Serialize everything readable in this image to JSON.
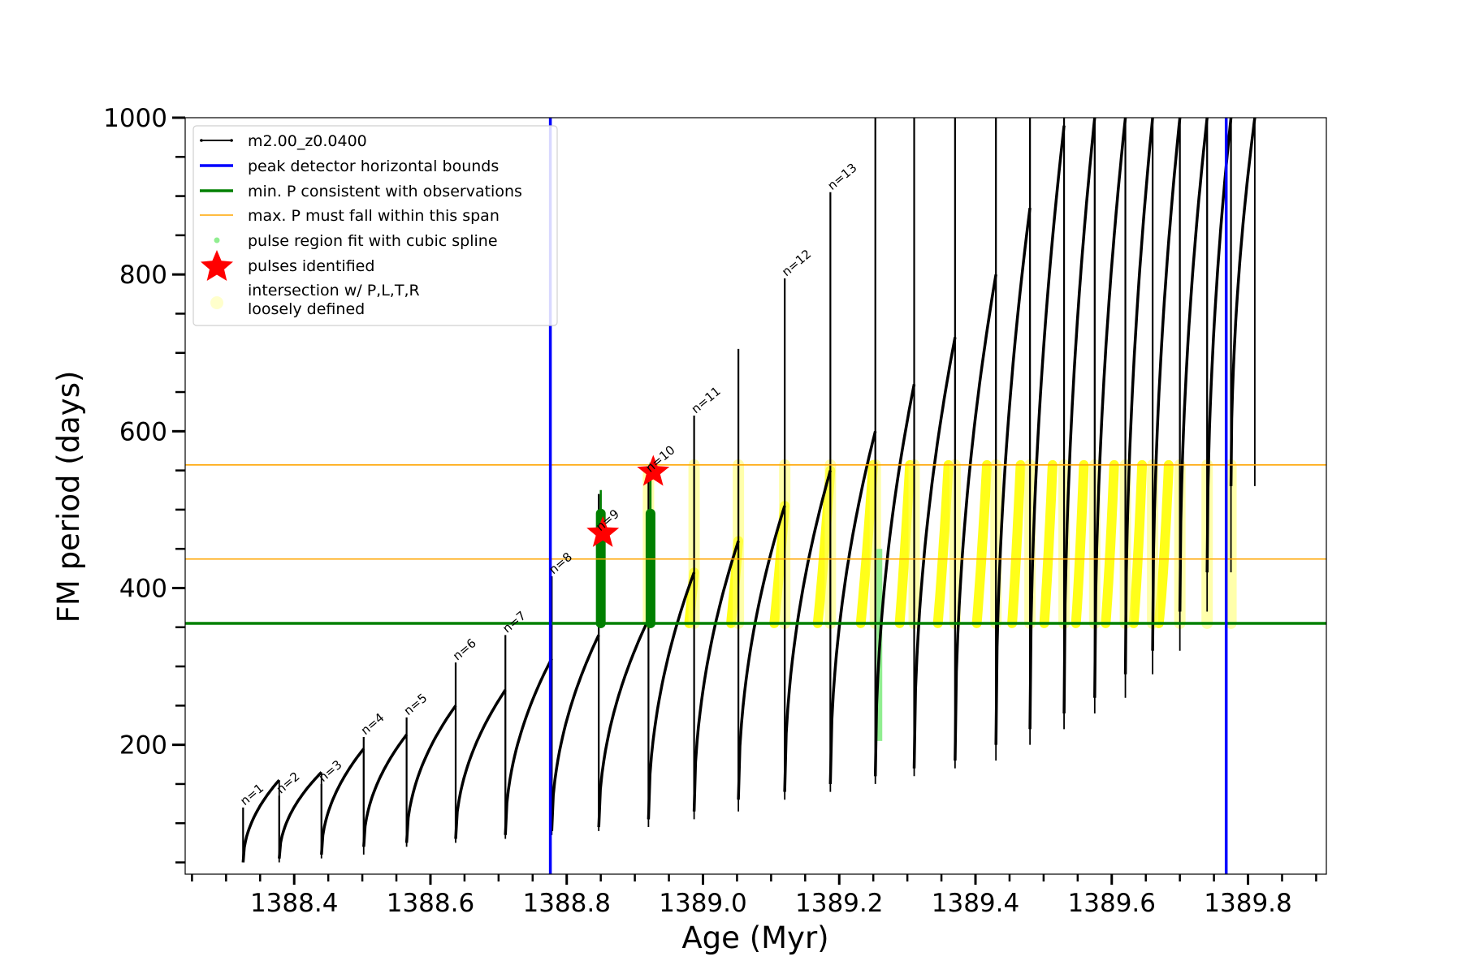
{
  "chart_data": {
    "type": "line",
    "xlabel": "Age (Myr)",
    "ylabel": "FM period (days)",
    "xlim": [
      1388.24,
      1389.915
    ],
    "ylim": [
      35,
      1000
    ],
    "x_ticks": [
      1388.4,
      1388.6,
      1388.8,
      1389.0,
      1389.2,
      1389.4,
      1389.6,
      1389.8
    ],
    "x_tick_labels": [
      "1388.4",
      "1388.6",
      "1388.8",
      "1389.0",
      "1389.2",
      "1389.4",
      "1389.6",
      "1389.8"
    ],
    "y_ticks": [
      200,
      400,
      600,
      800,
      1000
    ],
    "y_tick_labels": [
      "200",
      "400",
      "600",
      "800",
      "1000"
    ],
    "legend_position": "upper-left",
    "legend": [
      {
        "label": "m2.00_z0.0400",
        "kind": "line-dot",
        "color": "#000000"
      },
      {
        "label": "peak detector horizontal bounds",
        "kind": "line",
        "color": "#0000ff"
      },
      {
        "label": "min. P consistent with observations",
        "kind": "line",
        "color": "#008000"
      },
      {
        "label": "max. P must fall within this span",
        "kind": "line",
        "color": "#ffa500"
      },
      {
        "label": "pulse region fit with cubic spline",
        "kind": "dot",
        "color": "#90ee90"
      },
      {
        "label": "pulses identified",
        "kind": "star",
        "color": "#ff0000"
      },
      {
        "label": "intersection w/ P,L,T,R",
        "label2": "loosely defined",
        "kind": "circle",
        "color": "#ffffcc"
      }
    ],
    "vertical_lines": {
      "color": "#0000ff",
      "x": [
        1388.776,
        1389.768
      ]
    },
    "min_period_line": {
      "color": "#008000",
      "y": 355
    },
    "max_period_span": {
      "color": "#ffa500",
      "y": [
        437,
        557
      ]
    },
    "series": [
      {
        "name": "m2.00_z0.0400",
        "color": "#000000",
        "segments": [
          {
            "x0": 1388.325,
            "x1": 1388.378,
            "y_start": 50,
            "y_end": 155,
            "spike": 120
          },
          {
            "x0": 1388.378,
            "x1": 1388.44,
            "y_start": 55,
            "y_end": 165,
            "spike": 135
          },
          {
            "x0": 1388.44,
            "x1": 1388.502,
            "y_start": 60,
            "y_end": 195,
            "spike": 150
          },
          {
            "x0": 1388.502,
            "x1": 1388.565,
            "y_start": 70,
            "y_end": 213,
            "spike": 210
          },
          {
            "x0": 1388.565,
            "x1": 1388.637,
            "y_start": 75,
            "y_end": 250,
            "spike": 235
          },
          {
            "x0": 1388.637,
            "x1": 1388.71,
            "y_start": 80,
            "y_end": 270,
            "spike": 305
          },
          {
            "x0": 1388.71,
            "x1": 1388.778,
            "y_start": 85,
            "y_end": 310,
            "spike": 340
          },
          {
            "x0": 1388.778,
            "x1": 1388.847,
            "y_start": 90,
            "y_end": 340,
            "spike": 415
          },
          {
            "x0": 1388.847,
            "x1": 1388.92,
            "y_start": 95,
            "y_end": 360,
            "spike": 520
          },
          {
            "x0": 1388.92,
            "x1": 1388.987,
            "y_start": 105,
            "y_end": 420,
            "spike": 545
          },
          {
            "x0": 1388.987,
            "x1": 1389.052,
            "y_start": 115,
            "y_end": 460,
            "spike": 620
          },
          {
            "x0": 1389.052,
            "x1": 1389.12,
            "y_start": 130,
            "y_end": 505,
            "spike": 705
          },
          {
            "x0": 1389.12,
            "x1": 1389.187,
            "y_start": 140,
            "y_end": 550,
            "spike": 795
          },
          {
            "x0": 1389.187,
            "x1": 1389.253,
            "y_start": 150,
            "y_end": 600,
            "spike": 905
          },
          {
            "x0": 1389.253,
            "x1": 1389.31,
            "y_start": 160,
            "y_end": 660,
            "spike": 1000
          },
          {
            "x0": 1389.31,
            "x1": 1389.37,
            "y_start": 170,
            "y_end": 720,
            "spike": 1000
          },
          {
            "x0": 1389.37,
            "x1": 1389.43,
            "y_start": 180,
            "y_end": 800,
            "spike": 1000
          },
          {
            "x0": 1389.43,
            "x1": 1389.48,
            "y_start": 200,
            "y_end": 885,
            "spike": 1000
          },
          {
            "x0": 1389.48,
            "x1": 1389.53,
            "y_start": 220,
            "y_end": 990,
            "spike": 1000
          },
          {
            "x0": 1389.53,
            "x1": 1389.575,
            "y_start": 240,
            "y_end": 1000,
            "spike": 1000
          },
          {
            "x0": 1389.575,
            "x1": 1389.62,
            "y_start": 260,
            "y_end": 1000,
            "spike": 1000
          },
          {
            "x0": 1389.62,
            "x1": 1389.66,
            "y_start": 290,
            "y_end": 1000,
            "spike": 1000
          },
          {
            "x0": 1389.66,
            "x1": 1389.7,
            "y_start": 320,
            "y_end": 1000,
            "spike": 1000
          },
          {
            "x0": 1389.7,
            "x1": 1389.74,
            "y_start": 370,
            "y_end": 1000,
            "spike": 1000
          },
          {
            "x0": 1389.74,
            "x1": 1389.775,
            "y_start": 420,
            "y_end": 1000,
            "spike": 1000
          },
          {
            "x0": 1389.775,
            "x1": 1389.81,
            "y_start": 530,
            "y_end": 1000,
            "spike": 1000
          }
        ]
      }
    ],
    "pulse_labels": [
      {
        "text": "n=1",
        "x": 1388.325,
        "y": 120
      },
      {
        "text": "n=2",
        "x": 1388.378,
        "y": 135
      },
      {
        "text": "n=3",
        "x": 1388.44,
        "y": 150
      },
      {
        "text": "n=4",
        "x": 1388.502,
        "y": 210
      },
      {
        "text": "n=5",
        "x": 1388.565,
        "y": 235
      },
      {
        "text": "n=6",
        "x": 1388.637,
        "y": 305
      },
      {
        "text": "n=7",
        "x": 1388.71,
        "y": 340
      },
      {
        "text": "n=8",
        "x": 1388.778,
        "y": 415
      },
      {
        "text": "n=9",
        "x": 1388.847,
        "y": 470
      },
      {
        "text": "n=10",
        "x": 1388.92,
        "y": 545
      },
      {
        "text": "n=11",
        "x": 1388.987,
        "y": 620
      },
      {
        "text": "n=12",
        "x": 1389.12,
        "y": 795
      },
      {
        "text": "n=13",
        "x": 1389.187,
        "y": 905
      }
    ],
    "pulses_identified": [
      {
        "x": 1388.853,
        "y": 470
      },
      {
        "x": 1388.927,
        "y": 548
      }
    ],
    "green_spline_regions": [
      {
        "x": 1388.85,
        "y0": 355,
        "y1": 495,
        "spike": 525
      },
      {
        "x": 1388.923,
        "y0": 355,
        "y1": 495,
        "spike": 560
      }
    ],
    "lightgreen_regions": [
      {
        "x": 1389.259,
        "y0": 205,
        "y1": 450
      }
    ]
  }
}
